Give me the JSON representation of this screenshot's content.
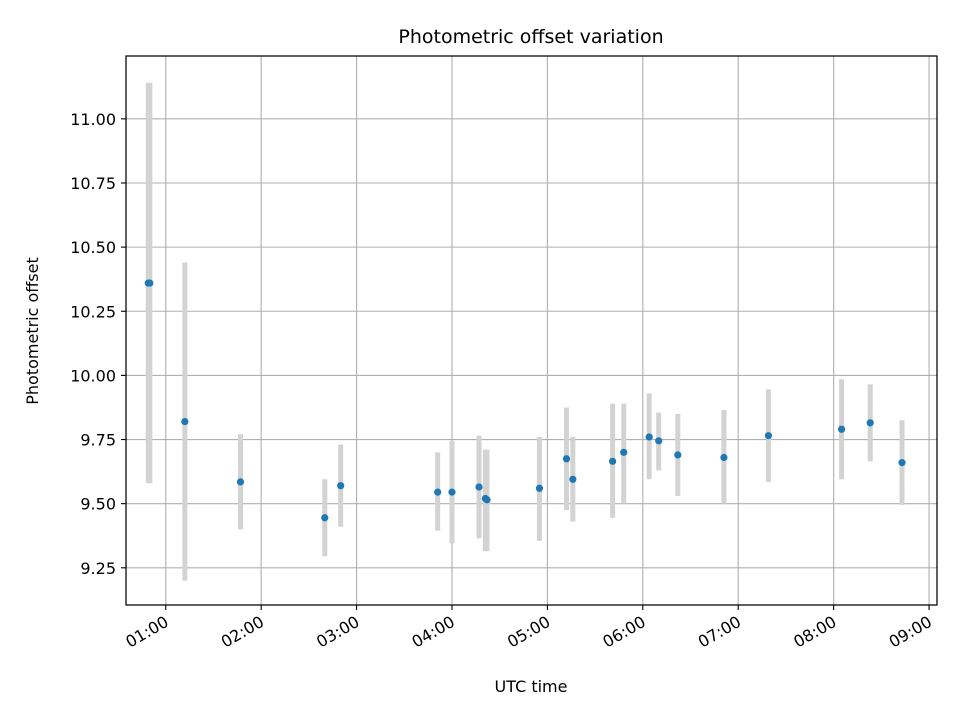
{
  "chart_data": {
    "type": "scatter",
    "title": "Photometric offset variation",
    "xlabel": "UTC time",
    "ylabel": "Photometric offset",
    "grid": true,
    "colors": {
      "point": "#1f77b4",
      "errorbar": "#d3d3d3",
      "grid": "#b0b0b0"
    },
    "xlim": [
      "00:35",
      "09:05"
    ],
    "ylim": [
      9.105,
      11.245
    ],
    "x_ticks": [
      "01:00",
      "02:00",
      "03:00",
      "04:00",
      "05:00",
      "06:00",
      "07:00",
      "08:00",
      "09:00"
    ],
    "y_ticks": [
      "9.25",
      "9.50",
      "9.75",
      "10.00",
      "10.25",
      "10.50",
      "10.75",
      "11.00"
    ],
    "series": [
      {
        "points": [
          {
            "x": "00:49",
            "y": 10.36,
            "lo": 9.58,
            "hi": 11.14
          },
          {
            "x": "00:50",
            "y": 10.36,
            "lo": 9.58,
            "hi": 11.14
          },
          {
            "x": "01:12",
            "y": 9.82,
            "lo": 9.2,
            "hi": 10.44
          },
          {
            "x": "01:47",
            "y": 9.585,
            "lo": 9.4,
            "hi": 9.77
          },
          {
            "x": "02:40",
            "y": 9.445,
            "lo": 9.295,
            "hi": 9.595
          },
          {
            "x": "02:50",
            "y": 9.57,
            "lo": 9.41,
            "hi": 9.73
          },
          {
            "x": "03:51",
            "y": 9.545,
            "lo": 9.395,
            "hi": 9.7
          },
          {
            "x": "04:00",
            "y": 9.545,
            "lo": 9.345,
            "hi": 9.745
          },
          {
            "x": "04:17",
            "y": 9.565,
            "lo": 9.365,
            "hi": 9.765
          },
          {
            "x": "04:21",
            "y": 9.52,
            "lo": 9.315,
            "hi": 9.71
          },
          {
            "x": "04:22",
            "y": 9.515,
            "lo": 9.315,
            "hi": 9.71
          },
          {
            "x": "04:55",
            "y": 9.56,
            "lo": 9.355,
            "hi": 9.76
          },
          {
            "x": "05:12",
            "y": 9.675,
            "lo": 9.475,
            "hi": 9.875
          },
          {
            "x": "05:16",
            "y": 9.595,
            "lo": 9.43,
            "hi": 9.76
          },
          {
            "x": "05:41",
            "y": 9.665,
            "lo": 9.445,
            "hi": 9.89
          },
          {
            "x": "05:48",
            "y": 9.7,
            "lo": 9.5,
            "hi": 9.89
          },
          {
            "x": "06:04",
            "y": 9.76,
            "lo": 9.595,
            "hi": 9.93
          },
          {
            "x": "06:10",
            "y": 9.745,
            "lo": 9.63,
            "hi": 9.855
          },
          {
            "x": "06:22",
            "y": 9.69,
            "lo": 9.53,
            "hi": 9.85
          },
          {
            "x": "06:51",
            "y": 9.68,
            "lo": 9.5,
            "hi": 9.865
          },
          {
            "x": "07:19",
            "y": 9.765,
            "lo": 9.585,
            "hi": 9.945
          },
          {
            "x": "08:05",
            "y": 9.79,
            "lo": 9.595,
            "hi": 9.985
          },
          {
            "x": "08:23",
            "y": 9.815,
            "lo": 9.665,
            "hi": 9.965
          },
          {
            "x": "08:43",
            "y": 9.66,
            "lo": 9.495,
            "hi": 9.825
          }
        ]
      }
    ]
  }
}
